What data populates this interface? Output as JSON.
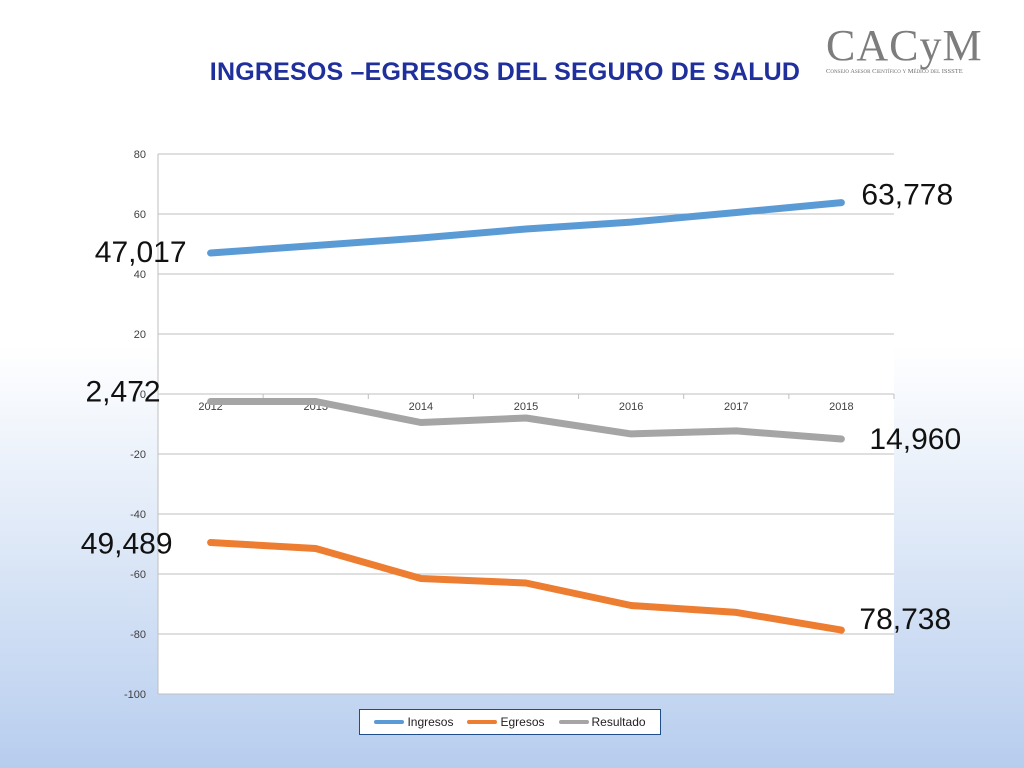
{
  "chart_data": {
    "type": "line",
    "title": "INGRESOS –EGRESOS DEL SEGURO DE SALUD",
    "categories": [
      "2012",
      "2013",
      "2014",
      "2015",
      "2016",
      "2017",
      "2018"
    ],
    "ylim": [
      -100,
      80
    ],
    "yticks": [
      "80",
      "60",
      "40",
      "20",
      "0",
      "-20",
      "-40",
      "-60",
      "-80",
      "-100"
    ],
    "grid": true,
    "legend_position": "bottom",
    "series": [
      {
        "name": "Ingresos",
        "color": "#5b9bd5",
        "values": [
          47.0,
          49.5,
          52.0,
          55.0,
          57.3,
          60.5,
          63.8
        ]
      },
      {
        "name": "Egresos",
        "color": "#ed7d31",
        "values": [
          -49.5,
          -51.5,
          -61.5,
          -63.0,
          -70.5,
          -72.8,
          -78.7
        ]
      },
      {
        "name": "Resultado",
        "color": "#a5a5a5",
        "values": [
          -2.5,
          -2.5,
          -9.5,
          -8.0,
          -13.3,
          -12.3,
          -15.0
        ]
      }
    ],
    "annotations": [
      {
        "text": "47,017",
        "series": "Ingresos",
        "point": "2012"
      },
      {
        "text": "63,778",
        "series": "Ingresos",
        "point": "2018"
      },
      {
        "text": "2,472",
        "series": "Resultado",
        "point": "2012"
      },
      {
        "text": "14,960",
        "series": "Resultado",
        "point": "2018"
      },
      {
        "text": "49,489",
        "series": "Egresos",
        "point": "2012"
      },
      {
        "text": "78,738",
        "series": "Egresos",
        "point": "2018"
      }
    ]
  },
  "logo": {
    "text": "CACyM",
    "tagline": "Consejo Asesor Científico y Médico del ISSSTE"
  }
}
